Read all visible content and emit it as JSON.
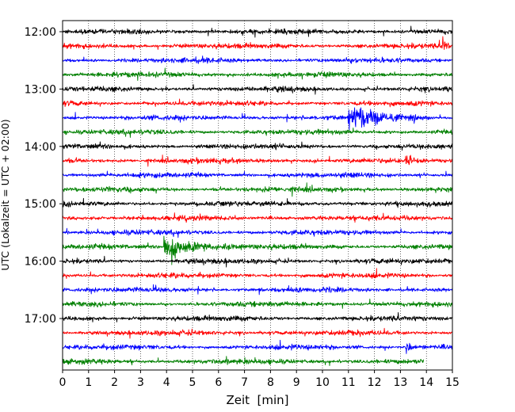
{
  "chart_data": {
    "type": "line",
    "xlabel": "Zeit  [min]",
    "ylabel": "UTC (Lokalzeit = UTC + 02:00)",
    "xlim": [
      0,
      15
    ],
    "x_ticks": [
      "0",
      "1",
      "2",
      "3",
      "4",
      "5",
      "6",
      "7",
      "8",
      "9",
      "10",
      "11",
      "12",
      "13",
      "14",
      "15"
    ],
    "y_tick_labels": [
      "12:00",
      "13:00",
      "14:00",
      "15:00",
      "16:00",
      "17:00"
    ],
    "row_colors": [
      "#000000",
      "#ff0000",
      "#0000ff",
      "#008000"
    ],
    "traces": [
      {
        "start": "12:00",
        "color": "#000000",
        "end_min": 15
      },
      {
        "start": "12:15",
        "color": "#ff0000",
        "end_min": 15
      },
      {
        "start": "12:30",
        "color": "#0000ff",
        "end_min": 15
      },
      {
        "start": "12:45",
        "color": "#008000",
        "end_min": 15
      },
      {
        "start": "13:00",
        "color": "#000000",
        "end_min": 15
      },
      {
        "start": "13:15",
        "color": "#ff0000",
        "end_min": 15
      },
      {
        "start": "13:30",
        "color": "#0000ff",
        "end_min": 15
      },
      {
        "start": "13:45",
        "color": "#008000",
        "end_min": 15
      },
      {
        "start": "14:00",
        "color": "#000000",
        "end_min": 15
      },
      {
        "start": "14:15",
        "color": "#ff0000",
        "end_min": 15
      },
      {
        "start": "14:30",
        "color": "#0000ff",
        "end_min": 15
      },
      {
        "start": "14:45",
        "color": "#008000",
        "end_min": 15
      },
      {
        "start": "15:00",
        "color": "#000000",
        "end_min": 15
      },
      {
        "start": "15:15",
        "color": "#ff0000",
        "end_min": 15
      },
      {
        "start": "15:30",
        "color": "#0000ff",
        "end_min": 15
      },
      {
        "start": "15:45",
        "color": "#008000",
        "end_min": 15
      },
      {
        "start": "16:00",
        "color": "#000000",
        "end_min": 15
      },
      {
        "start": "16:15",
        "color": "#ff0000",
        "end_min": 15
      },
      {
        "start": "16:30",
        "color": "#0000ff",
        "end_min": 15
      },
      {
        "start": "16:45",
        "color": "#008000",
        "end_min": 15
      },
      {
        "start": "17:00",
        "color": "#000000",
        "end_min": 15
      },
      {
        "start": "17:15",
        "color": "#ff0000",
        "end_min": 15
      },
      {
        "start": "17:30",
        "color": "#0000ff",
        "end_min": 15
      },
      {
        "start": "17:45",
        "color": "#008000",
        "end_min": 13.9
      }
    ],
    "events": [
      {
        "trace_start": "13:30",
        "onset_min": 11.0,
        "duration_min": 3.2,
        "amplitude": "high"
      },
      {
        "trace_start": "15:45",
        "onset_min": 3.9,
        "duration_min": 3.0,
        "amplitude": "high"
      },
      {
        "trace_start": "12:15",
        "onset_min": 14.6,
        "duration_min": 0.4,
        "amplitude": "medium"
      },
      {
        "trace_start": "14:15",
        "onset_min": 13.2,
        "duration_min": 0.4,
        "amplitude": "medium"
      },
      {
        "trace_start": "17:30",
        "onset_min": 13.2,
        "duration_min": 0.8,
        "amplitude": "medium"
      }
    ],
    "grid": {
      "x": "dotted",
      "y": "off"
    },
    "legend": "none"
  }
}
